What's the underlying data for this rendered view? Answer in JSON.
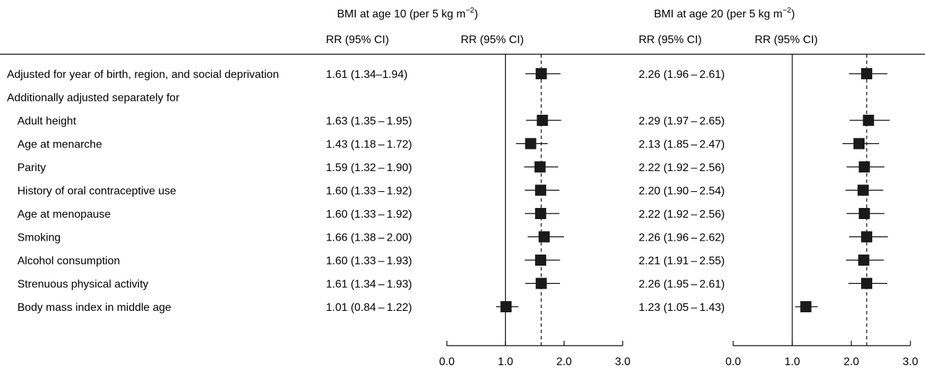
{
  "headers": {
    "panel1_title_main": "BMI at age 10 (per 5 kg m",
    "panel2_title_main": "BMI at age 20 (per 5 kg m",
    "title_exp": "−2",
    "title_close": ")",
    "col_label": "RR (95% CI)"
  },
  "rows": [
    {
      "label": "Adjusted for year of birth, region, and social deprivation",
      "indent": false,
      "ci10": "1.61 (1.34–1.94)",
      "ci20": "2.26 (1.96 – 2.61)"
    },
    {
      "label": "Additionally adjusted separately for",
      "indent": false,
      "ci10": "",
      "ci20": ""
    },
    {
      "label": "Adult height",
      "indent": true,
      "ci10": "1.63 (1.35 – 1.95)",
      "ci20": "2.29 (1.97 – 2.65)"
    },
    {
      "label": "Age at menarche",
      "indent": true,
      "ci10": "1.43 (1.18 – 1.72)",
      "ci20": "2.13 (1.85 – 2.47)"
    },
    {
      "label": "Parity",
      "indent": true,
      "ci10": "1.59 (1.32 – 1.90)",
      "ci20": "2.22 (1.92 – 2.56)"
    },
    {
      "label": "History of oral contraceptive use",
      "indent": true,
      "ci10": "1.60 (1.33 – 1.92)",
      "ci20": "2.20 (1.90 – 2.54)"
    },
    {
      "label": "Age at menopause",
      "indent": true,
      "ci10": "1.60 (1.33 – 1.92)",
      "ci20": "2.22 (1.92 – 2.56)"
    },
    {
      "label": "Smoking",
      "indent": true,
      "ci10": "1.66 (1.38 – 2.00)",
      "ci20": "2.26 (1.96 – 2.62)"
    },
    {
      "label": "Alcohol consumption",
      "indent": true,
      "ci10": "1.60 (1.33 – 1.93)",
      "ci20": "2.21 (1.91 – 2.55)"
    },
    {
      "label": "Strenuous physical activity",
      "indent": true,
      "ci10": "1.61 (1.34 – 1.93)",
      "ci20": "2.26 (1.95 – 2.61)"
    },
    {
      "label": "Body mass index in middle age",
      "indent": true,
      "ci10": "1.01 (0.84 – 1.22)",
      "ci20": "1.23 (1.05 – 1.43)"
    }
  ],
  "chart_data": [
    {
      "type": "forest",
      "title": "BMI at age 10 (per 5 kg m−2)",
      "x_range": [
        0,
        3
      ],
      "x_ticks": [
        "0.0",
        "1.0",
        "2.0",
        "3.0"
      ],
      "null_line": 1.0,
      "reference_line": 1.61,
      "points": [
        {
          "est": 1.61,
          "lo": 1.34,
          "hi": 1.94
        },
        null,
        {
          "est": 1.63,
          "lo": 1.35,
          "hi": 1.95
        },
        {
          "est": 1.43,
          "lo": 1.18,
          "hi": 1.72
        },
        {
          "est": 1.59,
          "lo": 1.32,
          "hi": 1.9
        },
        {
          "est": 1.6,
          "lo": 1.33,
          "hi": 1.92
        },
        {
          "est": 1.6,
          "lo": 1.33,
          "hi": 1.92
        },
        {
          "est": 1.66,
          "lo": 1.38,
          "hi": 2.0
        },
        {
          "est": 1.6,
          "lo": 1.33,
          "hi": 1.93
        },
        {
          "est": 1.61,
          "lo": 1.34,
          "hi": 1.93
        },
        {
          "est": 1.01,
          "lo": 0.84,
          "hi": 1.22
        }
      ]
    },
    {
      "type": "forest",
      "title": "BMI at age 20 (per 5 kg m−2)",
      "x_range": [
        0,
        3
      ],
      "x_ticks": [
        "0.0",
        "1.0",
        "2.0",
        "3.0"
      ],
      "null_line": 1.0,
      "reference_line": 2.26,
      "points": [
        {
          "est": 2.26,
          "lo": 1.96,
          "hi": 2.61
        },
        null,
        {
          "est": 2.29,
          "lo": 1.97,
          "hi": 2.65
        },
        {
          "est": 2.13,
          "lo": 1.85,
          "hi": 2.47
        },
        {
          "est": 2.22,
          "lo": 1.92,
          "hi": 2.56
        },
        {
          "est": 2.2,
          "lo": 1.9,
          "hi": 2.54
        },
        {
          "est": 2.22,
          "lo": 1.92,
          "hi": 2.56
        },
        {
          "est": 2.26,
          "lo": 1.96,
          "hi": 2.62
        },
        {
          "est": 2.21,
          "lo": 1.91,
          "hi": 2.55
        },
        {
          "est": 2.26,
          "lo": 1.95,
          "hi": 2.61
        },
        {
          "est": 1.23,
          "lo": 1.05,
          "hi": 1.43
        }
      ]
    }
  ]
}
